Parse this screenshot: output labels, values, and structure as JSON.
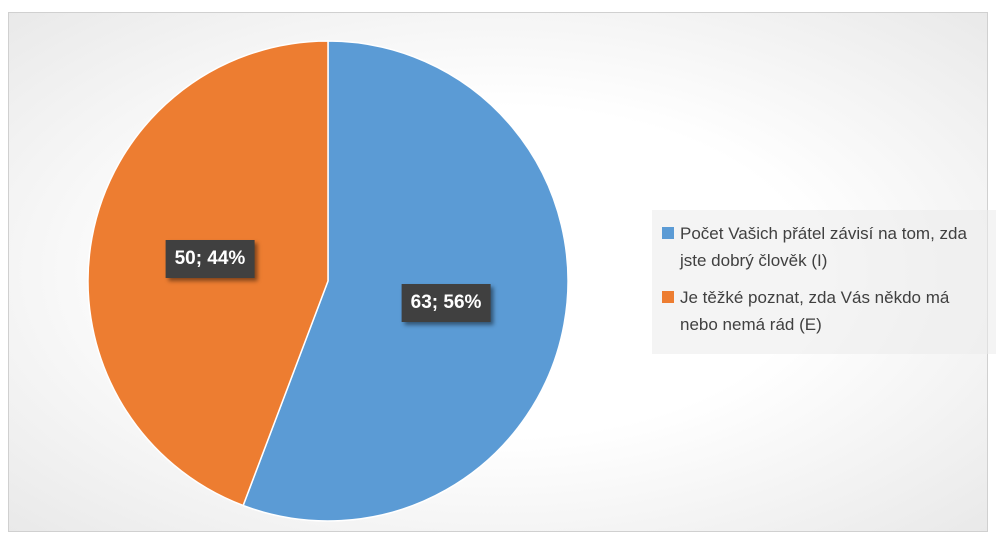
{
  "chart_data": {
    "type": "pie",
    "categories": [
      "Počet Vašich přátel závisí na tom, zda jste dobrý člověk (I)",
      "Je těžké poznat, zda Vás někdo má nebo nemá rád (E)"
    ],
    "values": [
      63,
      50
    ],
    "value_labels": [
      "63; 56%",
      "50; 44%"
    ],
    "colors": [
      "#5b9bd5",
      "#ed7d31"
    ],
    "legend": "right"
  }
}
